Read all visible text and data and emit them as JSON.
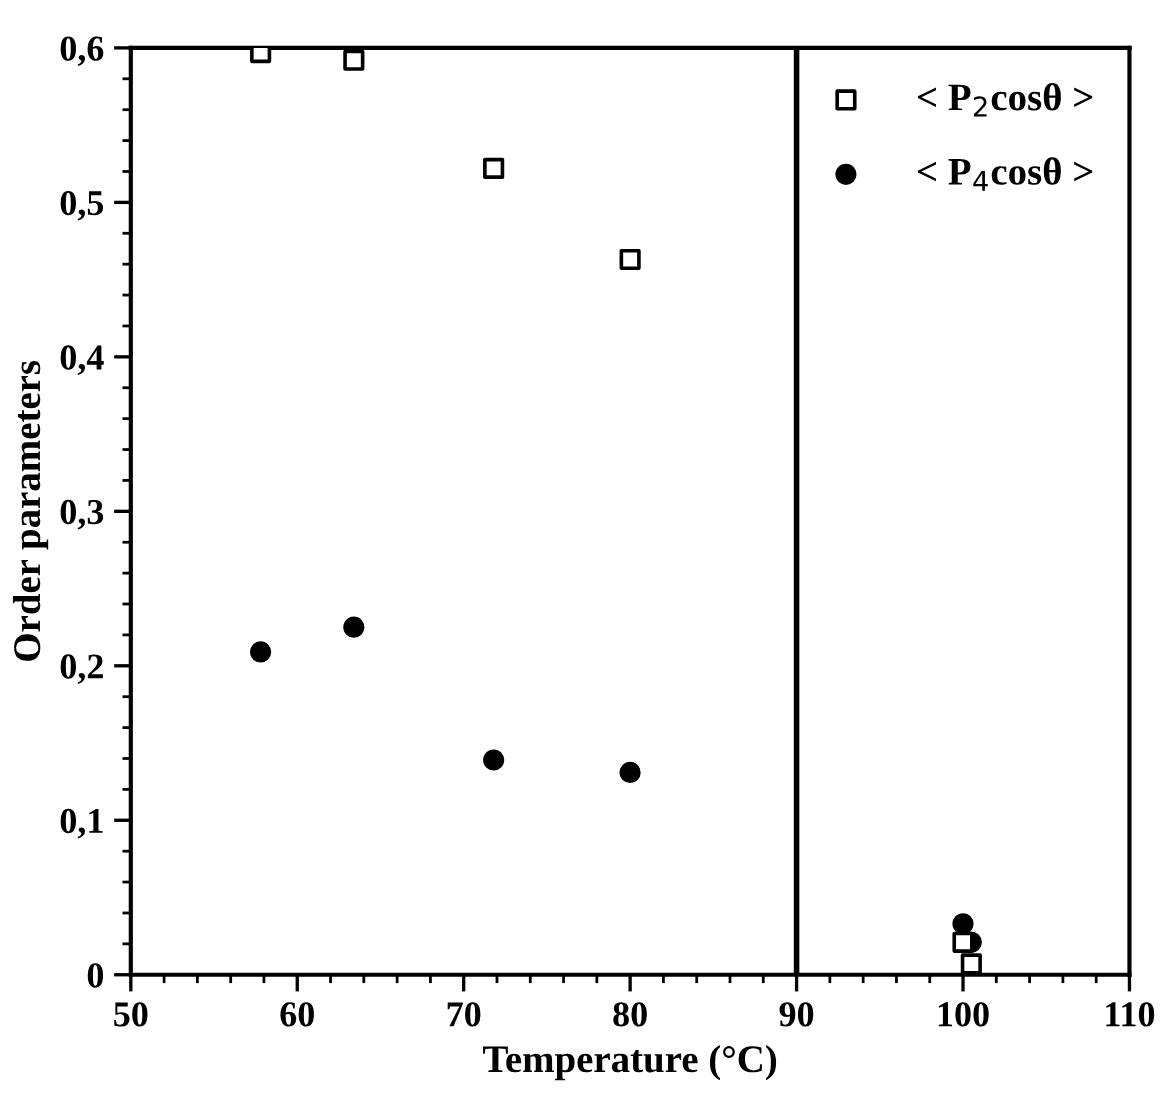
{
  "chart_data": {
    "type": "scatter",
    "xlabel": "Temperature (°C)",
    "ylabel": "Order parameters",
    "xlim": [
      50,
      110
    ],
    "xticks": [
      50,
      60,
      70,
      80,
      90,
      100,
      110
    ],
    "ylim": [
      0,
      0.6
    ],
    "yticks": [
      {
        "value": 0,
        "label": "0"
      },
      {
        "value": 0.1,
        "label": "0,1"
      },
      {
        "value": 0.2,
        "label": "0,2"
      },
      {
        "value": 0.3,
        "label": "0,3"
      },
      {
        "value": 0.4,
        "label": "0,4"
      },
      {
        "value": 0.5,
        "label": "0,5"
      },
      {
        "value": 0.6,
        "label": "0,6"
      }
    ],
    "series": [
      {
        "name": "< P$_{2}$cosθ >",
        "color": "#000000",
        "marker": "square",
        "x": [
          57.8,
          63.4,
          71.8,
          80.0,
          100.0,
          100.5
        ],
        "values": [
          0.597,
          0.592,
          0.522,
          0.463,
          0.021,
          0.007
        ]
      },
      {
        "name": "< P$_{4}$cosθ >",
        "color": "#000000",
        "marker": "circle",
        "x": [
          57.8,
          63.4,
          71.8,
          80.0,
          100.0,
          100.5
        ],
        "values": [
          0.209,
          0.225,
          0.139,
          0.131,
          0.033,
          0.021
        ]
      }
    ],
    "ref_lines": [
      {
        "axis": "x",
        "value": 90,
        "color": "#000000",
        "line_style": "solid"
      }
    ],
    "legend": "top right",
    "grid": false
  }
}
